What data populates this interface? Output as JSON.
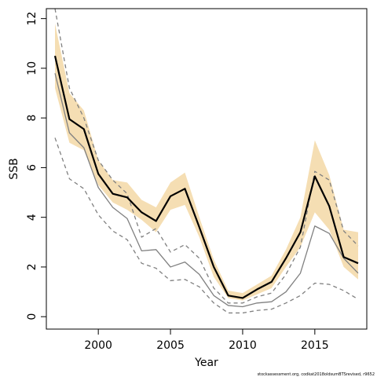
{
  "chart_data": {
    "type": "line",
    "xlabel": "Year",
    "ylabel": "SSB",
    "xlim": [
      1996.4,
      2018.6
    ],
    "ylim": [
      -0.5,
      12.4
    ],
    "x_ticks": [
      2000,
      2005,
      2010,
      2015
    ],
    "y_ticks": [
      0,
      2,
      4,
      6,
      8,
      10,
      12
    ],
    "x_tick_labels": [
      "2000",
      "2005",
      "2010",
      "2015"
    ],
    "y_tick_labels": [
      "0",
      "2",
      "4",
      "6",
      "8",
      "10",
      "12"
    ],
    "grid": false,
    "legend": "none",
    "footnote": "stockassessment.org, codkat2018oldsumBTSrevised, r9652",
    "x": [
      1997,
      1998,
      1999,
      2000,
      2001,
      2002,
      2003,
      2004,
      2005,
      2006,
      2007,
      2008,
      2009,
      2010,
      2011,
      2012,
      2013,
      2014,
      2015,
      2016,
      2017,
      2018
    ],
    "series": [
      {
        "role": "confidence band",
        "color": "#f5deb3",
        "lower": [
          9.2,
          7.0,
          6.7,
          5.3,
          4.6,
          4.3,
          3.9,
          3.4,
          4.3,
          4.5,
          3.2,
          1.6,
          0.75,
          0.65,
          0.9,
          1.15,
          2.0,
          2.8,
          4.2,
          3.5,
          2.0,
          1.5
        ],
        "upper": [
          11.8,
          9.0,
          8.3,
          6.3,
          5.5,
          5.4,
          4.7,
          4.4,
          5.4,
          5.8,
          4.0,
          2.3,
          1.05,
          0.95,
          1.3,
          1.65,
          2.7,
          4.0,
          7.1,
          5.7,
          3.5,
          3.4
        ]
      },
      {
        "role": "estimate",
        "color": "#000000",
        "values": [
          10.5,
          7.95,
          7.55,
          5.75,
          4.95,
          4.8,
          4.2,
          3.85,
          4.85,
          5.15,
          3.6,
          2.0,
          0.85,
          0.75,
          1.1,
          1.4,
          2.35,
          3.4,
          5.65,
          4.45,
          2.4,
          2.15
        ]
      },
      {
        "role": "comparison estimate",
        "color": "#808080",
        "dash": "solid",
        "values": [
          9.8,
          7.4,
          6.8,
          5.2,
          4.4,
          3.95,
          2.65,
          2.7,
          2.0,
          2.2,
          1.7,
          0.85,
          0.45,
          0.4,
          0.55,
          0.6,
          1.0,
          1.75,
          3.65,
          3.35,
          2.35,
          1.75
        ]
      },
      {
        "role": "comparison lower bound",
        "color": "#808080",
        "dash": "dashed",
        "values": [
          7.2,
          5.55,
          5.15,
          4.1,
          3.45,
          3.1,
          2.15,
          1.95,
          1.45,
          1.5,
          1.2,
          0.55,
          0.15,
          0.15,
          0.25,
          0.3,
          0.55,
          0.85,
          1.35,
          1.3,
          1.05,
          0.7
        ]
      },
      {
        "role": "comparison upper bound",
        "color": "#808080",
        "dash": "dashed",
        "values": [
          12.4,
          9.2,
          8.0,
          6.3,
          5.5,
          4.95,
          3.2,
          3.55,
          2.6,
          2.9,
          2.35,
          1.15,
          0.55,
          0.55,
          0.8,
          0.95,
          1.7,
          2.8,
          5.85,
          5.5,
          3.45,
          2.85
        ]
      }
    ]
  }
}
